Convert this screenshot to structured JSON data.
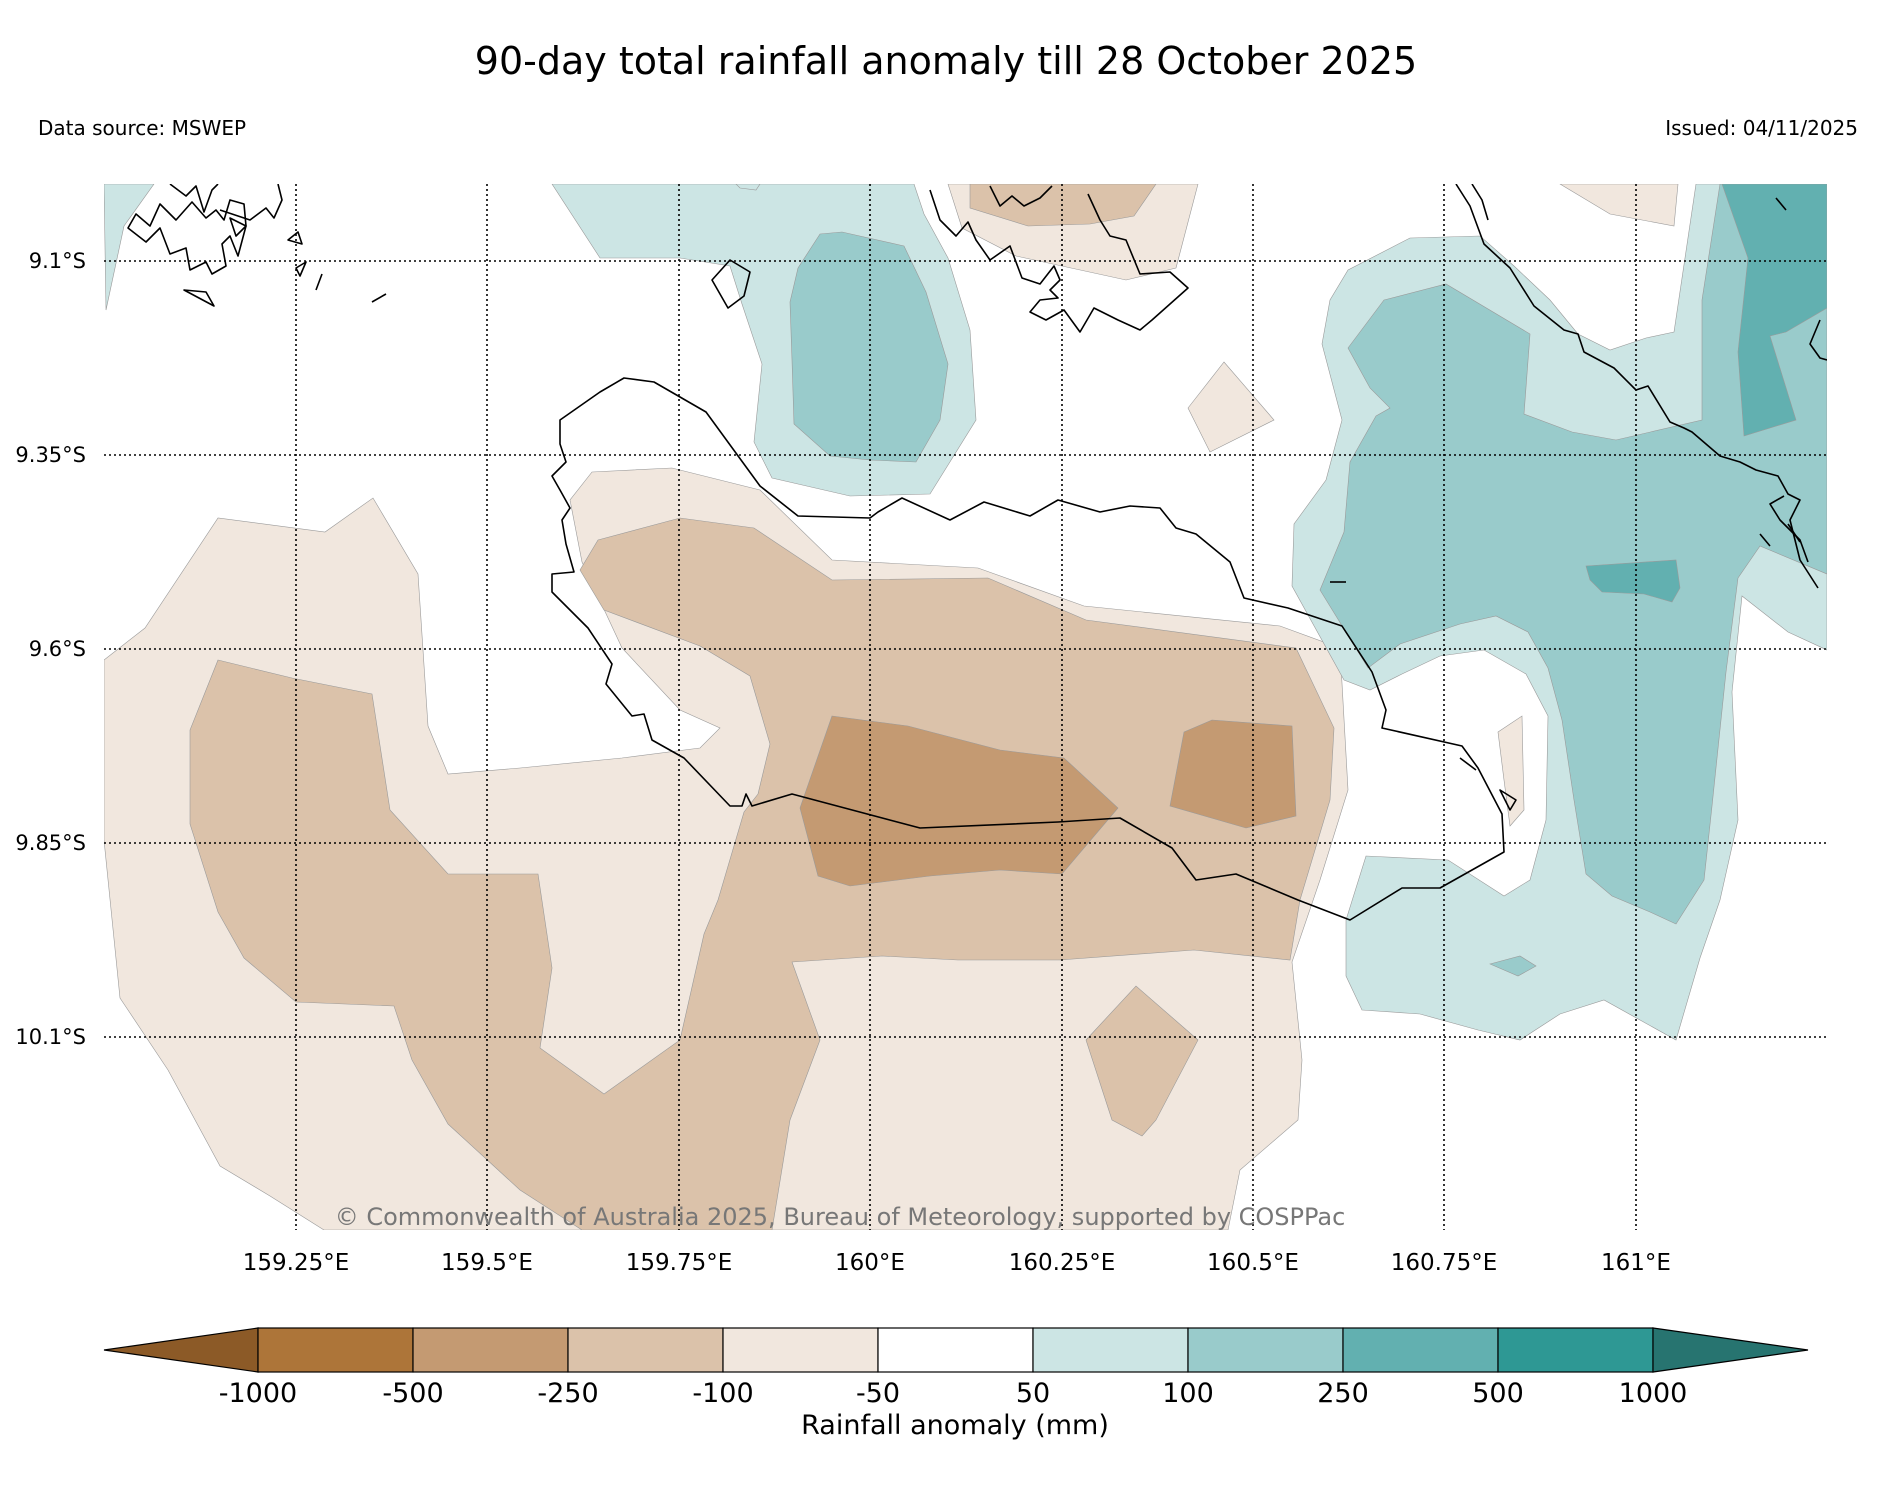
{
  "title": "90-day total rainfall anomaly till 28 October 2025",
  "data_source": "Data source: MSWEP",
  "issued": "Issued: 04/11/2025",
  "copyright": "© Commonwealth of Australia 2025, Bureau of Meteorology, supported by COSPPac",
  "latitude_labels": [
    "9.1°S",
    "9.35°S",
    "9.6°S",
    "9.85°S",
    "10.1°S"
  ],
  "longitude_labels": [
    "159.25°E",
    "159.5°E",
    "159.75°E",
    "160°E",
    "160.25°E",
    "160.5°E",
    "160.75°E",
    "161°E"
  ],
  "legend": {
    "title": "Rainfall anomaly (mm)",
    "tick_labels": [
      "-1000",
      "-500",
      "-250",
      "-100",
      "-50",
      "50",
      "100",
      "250",
      "500",
      "1000"
    ],
    "bins": [
      {
        "range": "< -1000",
        "color": "#8c5a27"
      },
      {
        "range": "-1000 to -500",
        "color": "#ad7539"
      },
      {
        "range": "-500 to -250",
        "color": "#c49a72"
      },
      {
        "range": "-250 to -100",
        "color": "#dbc2aa"
      },
      {
        "range": "-100 to -50",
        "color": "#f1e7de"
      },
      {
        "range": "-50 to 50",
        "color": "#ffffff"
      },
      {
        "range": "50 to 100",
        "color": "#cce5e4"
      },
      {
        "range": "100 to 250",
        "color": "#99cbcb"
      },
      {
        "range": "250 to 500",
        "color": "#62b0b0"
      },
      {
        "range": "500 to 1000",
        "color": "#2e9894"
      },
      {
        "range": "> 1000",
        "color": "#277470"
      }
    ]
  },
  "colors": {
    "dry_moderate": "#f1e7de",
    "dry_strong": "#dbc2aa",
    "dry_severe": "#c49a72",
    "wet_moderate": "#cce5e4",
    "wet_strong": "#99cbcb",
    "wet_severe": "#62b0b0",
    "coastline": "#000000",
    "copyright_text": "#777777"
  }
}
